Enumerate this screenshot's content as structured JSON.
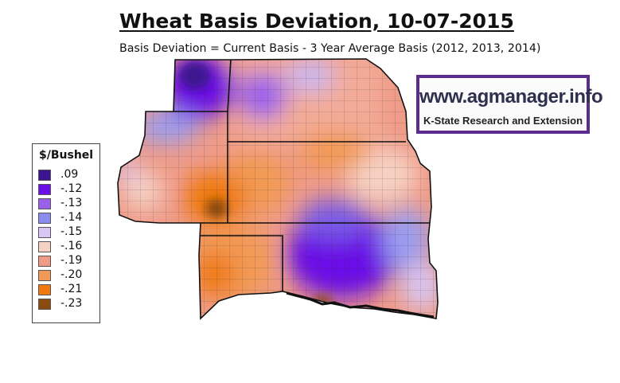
{
  "title": "Wheat Basis Deviation, 10-07-2015",
  "subtitle": "Basis Deviation = Current Basis - 3 Year Average Basis (2012, 2013, 2014)",
  "legend": {
    "title": "$/Bushel",
    "items": [
      {
        "label": ".09",
        "color": "#3d1490"
      },
      {
        "label": "-.12",
        "color": "#6a10e6"
      },
      {
        "label": "-.13",
        "color": "#9a60ec"
      },
      {
        "label": "-.14",
        "color": "#8b8cf0"
      },
      {
        "label": "-.15",
        "color": "#d8c6f4"
      },
      {
        "label": "-.16",
        "color": "#f6d2c4"
      },
      {
        "label": "-.19",
        "color": "#ef9b88"
      },
      {
        "label": "-.20",
        "color": "#f29a55"
      },
      {
        "label": "-.21",
        "color": "#f07a10"
      },
      {
        "label": "-.23",
        "color": "#8a4a10"
      }
    ]
  },
  "branding": {
    "url": "www.agmanager.info",
    "org": "K-State Research and Extension"
  }
}
